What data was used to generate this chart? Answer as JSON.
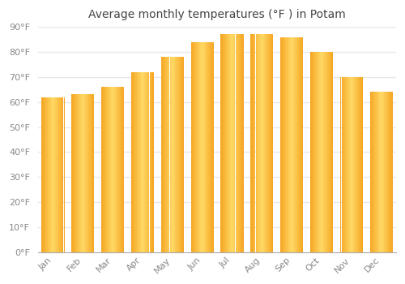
{
  "title": "Average monthly temperatures (°F ) in Potam",
  "months": [
    "Jan",
    "Feb",
    "Mar",
    "Apr",
    "May",
    "Jun",
    "Jul",
    "Aug",
    "Sep",
    "Oct",
    "Nov",
    "Dec"
  ],
  "values": [
    62,
    63,
    66,
    72,
    78,
    84,
    87,
    87,
    86,
    80,
    70,
    64
  ],
  "bar_color_center": "#FFD966",
  "bar_color_edge": "#F5A623",
  "ylim": [
    0,
    90
  ],
  "yticks": [
    0,
    10,
    20,
    30,
    40,
    50,
    60,
    70,
    80,
    90
  ],
  "ytick_labels": [
    "0°F",
    "10°F",
    "20°F",
    "30°F",
    "40°F",
    "50°F",
    "60°F",
    "70°F",
    "80°F",
    "90°F"
  ],
  "background_color": "#FFFFFF",
  "grid_color": "#E8E8E8",
  "title_fontsize": 10,
  "tick_fontsize": 8,
  "bar_width": 0.75,
  "tick_color": "#888888",
  "spine_color": "#AAAAAA"
}
